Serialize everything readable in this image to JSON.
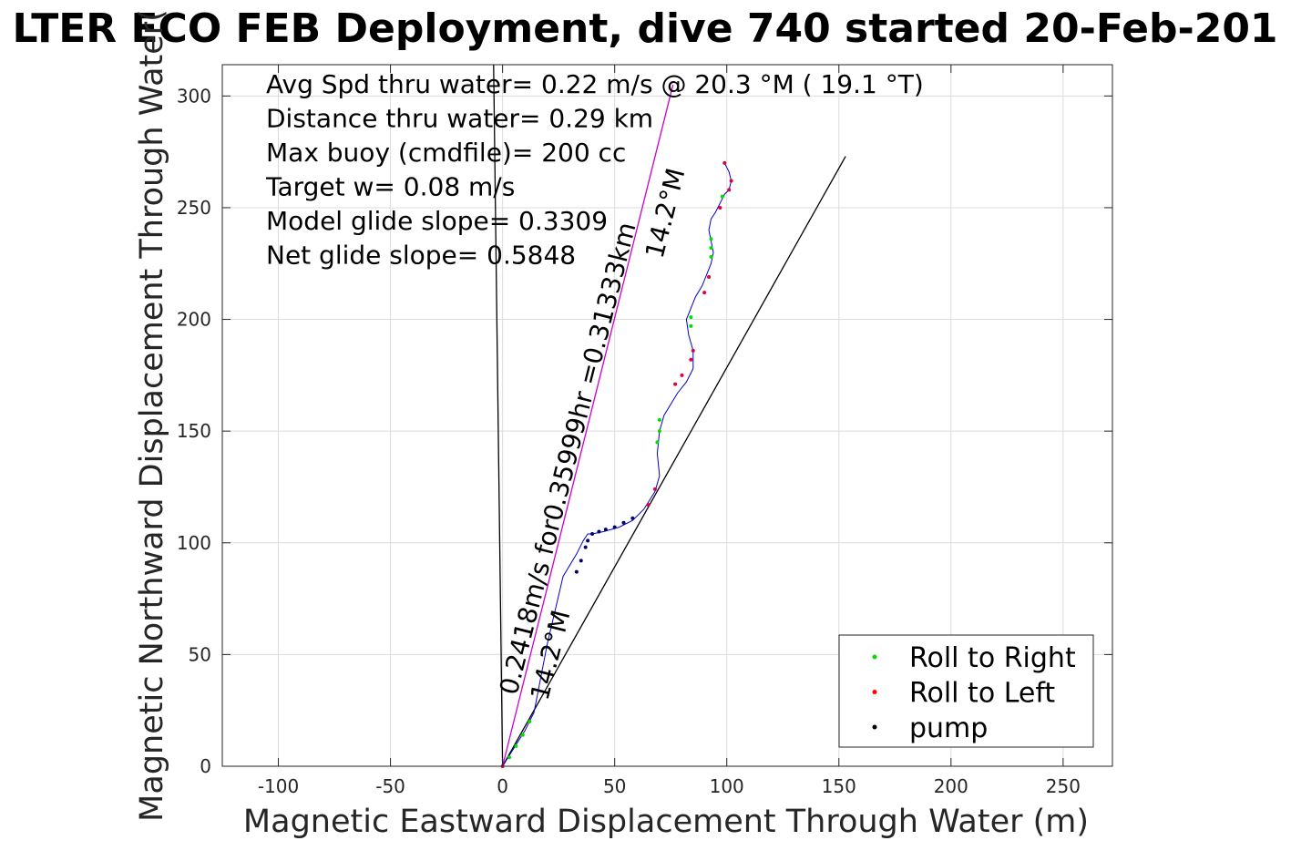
{
  "chart_data": {
    "type": "scatter",
    "title": "LTER ECO FEB Deployment, dive 740 started 20-Feb-201",
    "xlabel": "Magnetic Eastward Displacement Through Water (m)",
    "ylabel": "Magnetic Northward Displacement Through Water(",
    "xlim": [
      -125,
      272
    ],
    "ylim": [
      0,
      314
    ],
    "xticks": [
      -100,
      -50,
      0,
      50,
      100,
      150,
      200,
      250
    ],
    "yticks": [
      0,
      50,
      100,
      150,
      200,
      250,
      300
    ],
    "grid": true,
    "legend_position": "bottom-right",
    "legend": [
      {
        "label": "Roll to Right",
        "color": "#00dd00"
      },
      {
        "label": "Roll to Left",
        "color": "#ff0000"
      },
      {
        "label": "pump",
        "color": "#000000"
      }
    ],
    "annotations": [
      "Avg Spd thru water=  0.22 m/s @  20.3 °M ( 19.1 °T)",
      "Distance thru water=  0.29 km",
      "Max buoy (cmdfile)= 200 cc",
      "Target w= 0.08 m/s",
      "Model glide slope= 0.3309",
      "Net glide slope= 0.5848"
    ],
    "rotated_labels": {
      "lower_line1": "0.2418m/s for0.35999hr =0.31333km",
      "lower_line2": "14.2°M",
      "upper": "14.2°M"
    },
    "track": {
      "name": "track",
      "color": "#0000cc",
      "x": [
        0,
        5,
        10,
        14,
        20,
        27,
        33,
        36,
        38,
        40,
        45,
        52,
        58,
        63,
        68,
        70,
        69,
        70,
        72,
        75,
        78,
        82,
        85,
        85,
        83,
        82,
        84,
        86,
        89,
        91,
        93,
        94,
        93,
        92,
        93,
        95,
        97,
        99,
        101,
        102,
        101,
        100,
        99
      ],
      "y": [
        0,
        8,
        16,
        24,
        55,
        85,
        95,
        101,
        104,
        104,
        105,
        107,
        110,
        115,
        123,
        130,
        140,
        150,
        157,
        162,
        167,
        172,
        178,
        186,
        193,
        200,
        205,
        210,
        215,
        220,
        225,
        230,
        235,
        240,
        245,
        248,
        252,
        256,
        258,
        262,
        266,
        268,
        270
      ],
      "roll_right": [
        [
          3,
          4
        ],
        [
          6,
          9
        ],
        [
          9,
          14
        ],
        [
          12,
          20
        ],
        [
          69,
          145
        ],
        [
          70,
          150
        ],
        [
          70,
          155
        ],
        [
          84,
          197
        ],
        [
          84,
          201
        ],
        [
          93,
          228
        ],
        [
          93,
          232
        ],
        [
          93,
          236
        ],
        [
          98,
          255
        ]
      ],
      "roll_left": [
        [
          0,
          0
        ],
        [
          65,
          117
        ],
        [
          68,
          124
        ],
        [
          77,
          171
        ],
        [
          80,
          175
        ],
        [
          84,
          182
        ],
        [
          85,
          186
        ],
        [
          90,
          212
        ],
        [
          92,
          219
        ],
        [
          97,
          250
        ],
        [
          101,
          258
        ],
        [
          102,
          262
        ],
        [
          99,
          270
        ]
      ],
      "pump": [
        [
          33,
          87
        ],
        [
          35,
          92
        ],
        [
          37,
          98
        ],
        [
          38,
          101
        ],
        [
          40,
          104
        ],
        [
          43,
          105
        ],
        [
          46,
          106
        ],
        [
          50,
          107
        ],
        [
          54,
          109
        ],
        [
          58,
          111
        ]
      ]
    },
    "lines": {
      "magenta": {
        "color": "#cc00cc",
        "x": [
          0,
          76
        ],
        "y": [
          0,
          305
        ]
      },
      "black_near_vertical": {
        "color": "#000000",
        "x": [
          -4,
          0
        ],
        "y": [
          314,
          0
        ]
      },
      "black_diagonal": {
        "color": "#000000",
        "x": [
          0,
          153
        ],
        "y": [
          0,
          273
        ]
      }
    }
  }
}
